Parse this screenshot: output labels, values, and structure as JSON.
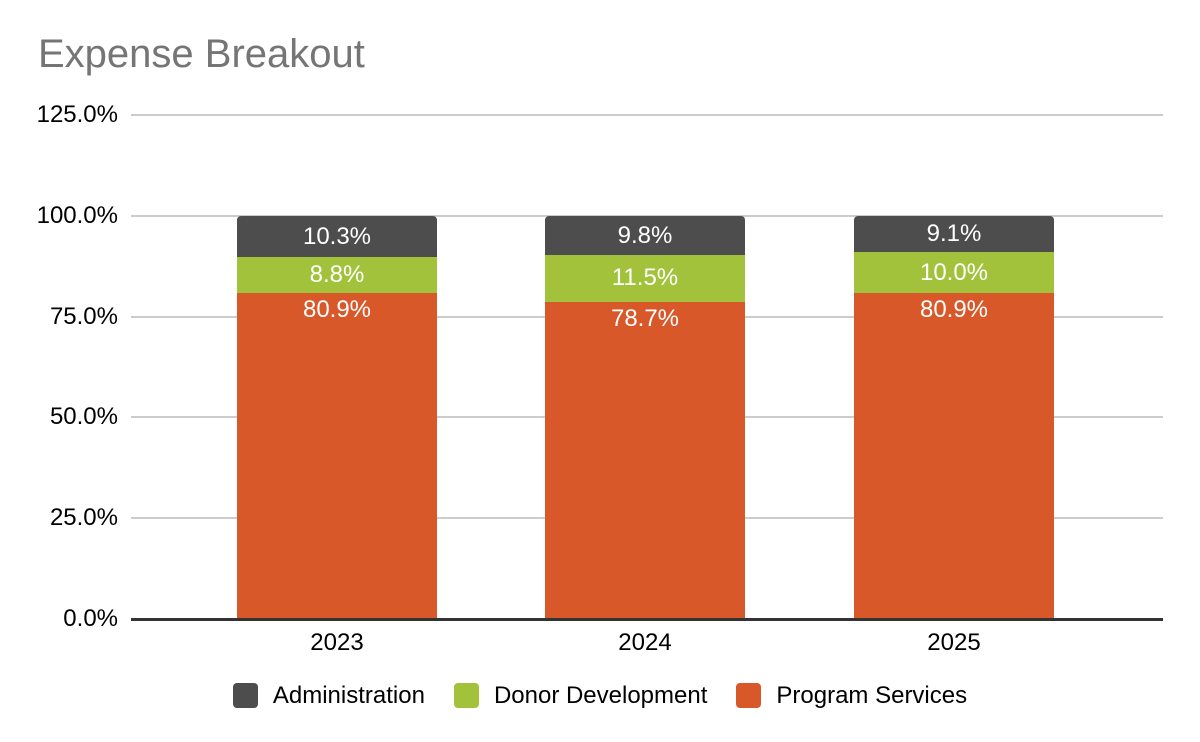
{
  "title": "Expense Breakout",
  "title_color": "#757575",
  "chart_data": {
    "type": "bar",
    "stacked": true,
    "title": "Expense Breakout",
    "categories": [
      "2023",
      "2024",
      "2025"
    ],
    "series": [
      {
        "name": "Administration",
        "color": "#4d4d4d",
        "values": [
          10.3,
          9.8,
          9.1
        ],
        "labels": [
          "10.3%",
          "9.8%",
          "9.1%"
        ]
      },
      {
        "name": "Donor Development",
        "color": "#a2c23c",
        "values": [
          8.8,
          11.5,
          10.0
        ],
        "labels": [
          "8.8%",
          "11.5%",
          "10.0%"
        ]
      },
      {
        "name": "Program Services",
        "color": "#d8582a",
        "values": [
          80.9,
          78.7,
          80.9
        ],
        "labels": [
          "80.9%",
          "78.7%",
          "80.9%"
        ]
      }
    ],
    "stack_order_bottom_to_top": [
      "Program Services",
      "Donor Development",
      "Administration"
    ],
    "value_label_color": "#ffffff",
    "xlabel": "",
    "ylabel": "",
    "ylim": [
      0,
      125
    ],
    "yticks": [
      {
        "value": 125,
        "label": "125.0%"
      },
      {
        "value": 100,
        "label": "100.0%"
      },
      {
        "value": 75,
        "label": "75.0%"
      },
      {
        "value": 50,
        "label": "50.0%"
      },
      {
        "value": 25,
        "label": "25.0%"
      },
      {
        "value": 0,
        "label": "0.0%"
      }
    ],
    "grid": "horizontal",
    "grid_color": "#cccccc",
    "axis_line_color": "#333333",
    "legend_position": "bottom",
    "legend": [
      "Administration",
      "Donor Development",
      "Program Services"
    ]
  }
}
